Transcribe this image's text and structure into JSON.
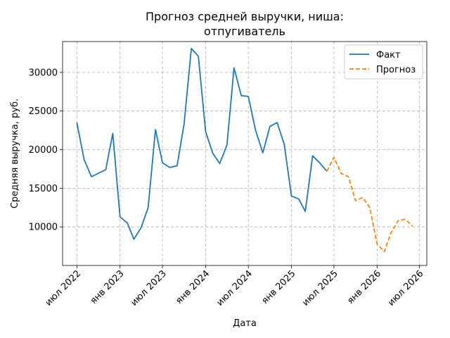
{
  "chart_data": {
    "type": "line",
    "title": "Прогноз средней выручки, ниша:",
    "subtitle": "отпугиватель",
    "xlabel": "Дата",
    "ylabel": "Средняя выручка, руб.",
    "ylim": [
      5000,
      34000
    ],
    "xlim": [
      "2022-05-01",
      "2026-08-01"
    ],
    "x_ticks": [
      {
        "date": "2022-07-01",
        "label": "июл 2022"
      },
      {
        "date": "2023-01-01",
        "label": "янв 2023"
      },
      {
        "date": "2023-07-01",
        "label": "июл 2023"
      },
      {
        "date": "2024-01-01",
        "label": "янв 2024"
      },
      {
        "date": "2024-07-01",
        "label": "июл 2024"
      },
      {
        "date": "2025-01-01",
        "label": "янв 2025"
      },
      {
        "date": "2025-07-01",
        "label": "июл 2025"
      },
      {
        "date": "2026-01-01",
        "label": "янв 2026"
      },
      {
        "date": "2026-07-01",
        "label": "июл 2026"
      }
    ],
    "y_ticks": [
      10000,
      15000,
      20000,
      25000,
      30000
    ],
    "grid": true,
    "legend_position": "top-right",
    "series": [
      {
        "name": "Факт",
        "color": "#1f77b4",
        "style": "solid",
        "points": [
          [
            "2022-07-01",
            23500
          ],
          [
            "2022-08-01",
            18700
          ],
          [
            "2022-09-01",
            16500
          ],
          [
            "2022-11-01",
            17400
          ],
          [
            "2022-12-01",
            22100
          ],
          [
            "2023-01-01",
            11300
          ],
          [
            "2023-02-01",
            10500
          ],
          [
            "2023-03-01",
            8400
          ],
          [
            "2023-04-01",
            9900
          ],
          [
            "2023-05-01",
            12500
          ],
          [
            "2023-06-01",
            22600
          ],
          [
            "2023-07-01",
            18300
          ],
          [
            "2023-08-01",
            17700
          ],
          [
            "2023-09-01",
            17900
          ],
          [
            "2023-10-01",
            23300
          ],
          [
            "2023-11-01",
            33100
          ],
          [
            "2023-12-01",
            32100
          ],
          [
            "2024-01-01",
            22300
          ],
          [
            "2024-02-01",
            19500
          ],
          [
            "2024-03-01",
            18200
          ],
          [
            "2024-04-01",
            20600
          ],
          [
            "2024-05-01",
            30600
          ],
          [
            "2024-06-01",
            27000
          ],
          [
            "2024-07-01",
            26900
          ],
          [
            "2024-08-01",
            22500
          ],
          [
            "2024-09-01",
            19600
          ],
          [
            "2024-10-01",
            23000
          ],
          [
            "2024-11-01",
            23500
          ],
          [
            "2024-12-01",
            20700
          ],
          [
            "2025-01-01",
            14000
          ],
          [
            "2025-02-01",
            13600
          ],
          [
            "2025-03-01",
            12000
          ],
          [
            "2025-04-01",
            19200
          ],
          [
            "2025-05-01",
            18300
          ],
          [
            "2025-06-01",
            17200
          ]
        ]
      },
      {
        "name": "Прогноз",
        "color": "#ff7f0e",
        "style": "dashed",
        "points": [
          [
            "2025-06-01",
            17200
          ],
          [
            "2025-07-01",
            19000
          ],
          [
            "2025-08-01",
            16900
          ],
          [
            "2025-09-01",
            16500
          ],
          [
            "2025-10-01",
            13400
          ],
          [
            "2025-11-01",
            13800
          ],
          [
            "2025-12-01",
            12500
          ],
          [
            "2026-01-01",
            7800
          ],
          [
            "2026-02-01",
            6800
          ],
          [
            "2026-03-01",
            9200
          ],
          [
            "2026-04-01",
            10800
          ],
          [
            "2026-05-01",
            11000
          ],
          [
            "2026-06-01",
            10100
          ]
        ]
      }
    ]
  }
}
